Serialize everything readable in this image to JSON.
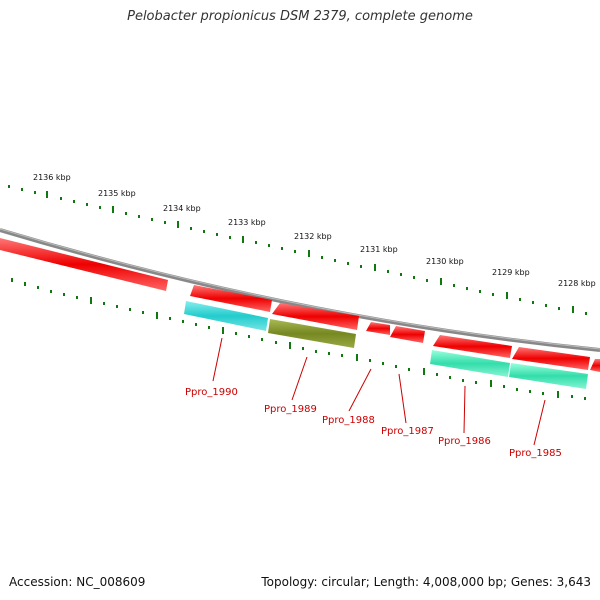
{
  "title": "Pelobacter propionicus DSM 2379, complete genome",
  "footer": {
    "accession": "Accession: NC_008609",
    "topology": "Topology: circular; Length: 4,008,000 bp; Genes: 3,643"
  },
  "scale_labels": [
    "2136 kbp",
    "2135 kbp",
    "2134 kbp",
    "2133 kbp",
    "2132 kbp",
    "2131 kbp",
    "2130 kbp",
    "2129 kbp",
    "2128 kbp"
  ],
  "gene_labels": [
    "Ppro_1990",
    "Ppro_1989",
    "Ppro_1988",
    "Ppro_1987",
    "Ppro_1986",
    "Ppro_1985"
  ],
  "colors": {
    "backbone": "#888888",
    "cds_forward": "#ee0000",
    "cds_cyan": "#22cccc",
    "cds_olive": "#778822",
    "cds_seafoam": "#33ddaa",
    "ticks": "#117711",
    "label_text": "#cc0000"
  }
}
